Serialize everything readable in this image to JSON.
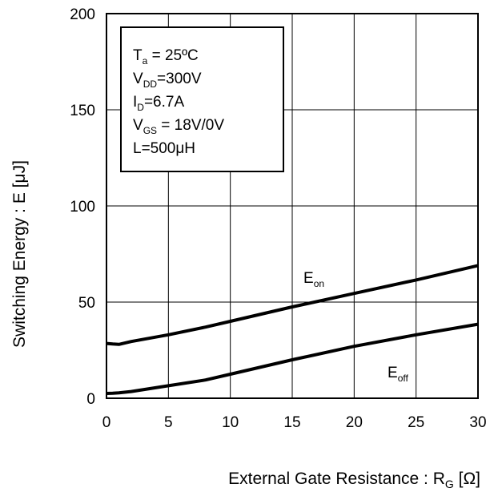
{
  "chart_data": {
    "type": "line",
    "title": "",
    "xlabel": "External Gate Resistance : R",
    "xlabel_sub": "G",
    "xlabel_unit": " [Ω]",
    "ylabel": "Switching Energy : E [μJ]",
    "xlim": [
      0,
      30
    ],
    "ylim": [
      0,
      200
    ],
    "x_ticks": [
      0,
      5,
      10,
      15,
      20,
      25,
      30
    ],
    "y_ticks": [
      0,
      50,
      100,
      150,
      200
    ],
    "grid": true,
    "series": [
      {
        "name": "E",
        "name_sub": "on",
        "x": [
          0,
          0.5,
          1,
          2,
          5,
          8,
          10,
          15,
          20,
          25,
          30
        ],
        "y": [
          28.5,
          28.2,
          28,
          29.5,
          33,
          37,
          40,
          47.5,
          54.5,
          61.5,
          69
        ]
      },
      {
        "name": "E",
        "name_sub": "off",
        "x": [
          0,
          0.5,
          1,
          2,
          5,
          8,
          10,
          15,
          20,
          25,
          30
        ],
        "y": [
          2.5,
          2.6,
          2.8,
          3.5,
          6.5,
          9.5,
          12.5,
          20,
          27,
          33,
          38.5
        ]
      }
    ],
    "conditions": [
      {
        "main": "T",
        "sub": "a",
        "rest": " = 25ºC"
      },
      {
        "main": "V",
        "sub": "DD",
        "rest": "=300V"
      },
      {
        "main": "I",
        "sub": "D",
        "rest": "=6.7A"
      },
      {
        "main": "V",
        "sub": "GS",
        "rest": " = 18V/0V"
      },
      {
        "main": "L=500μH",
        "sub": "",
        "rest": ""
      }
    ]
  }
}
